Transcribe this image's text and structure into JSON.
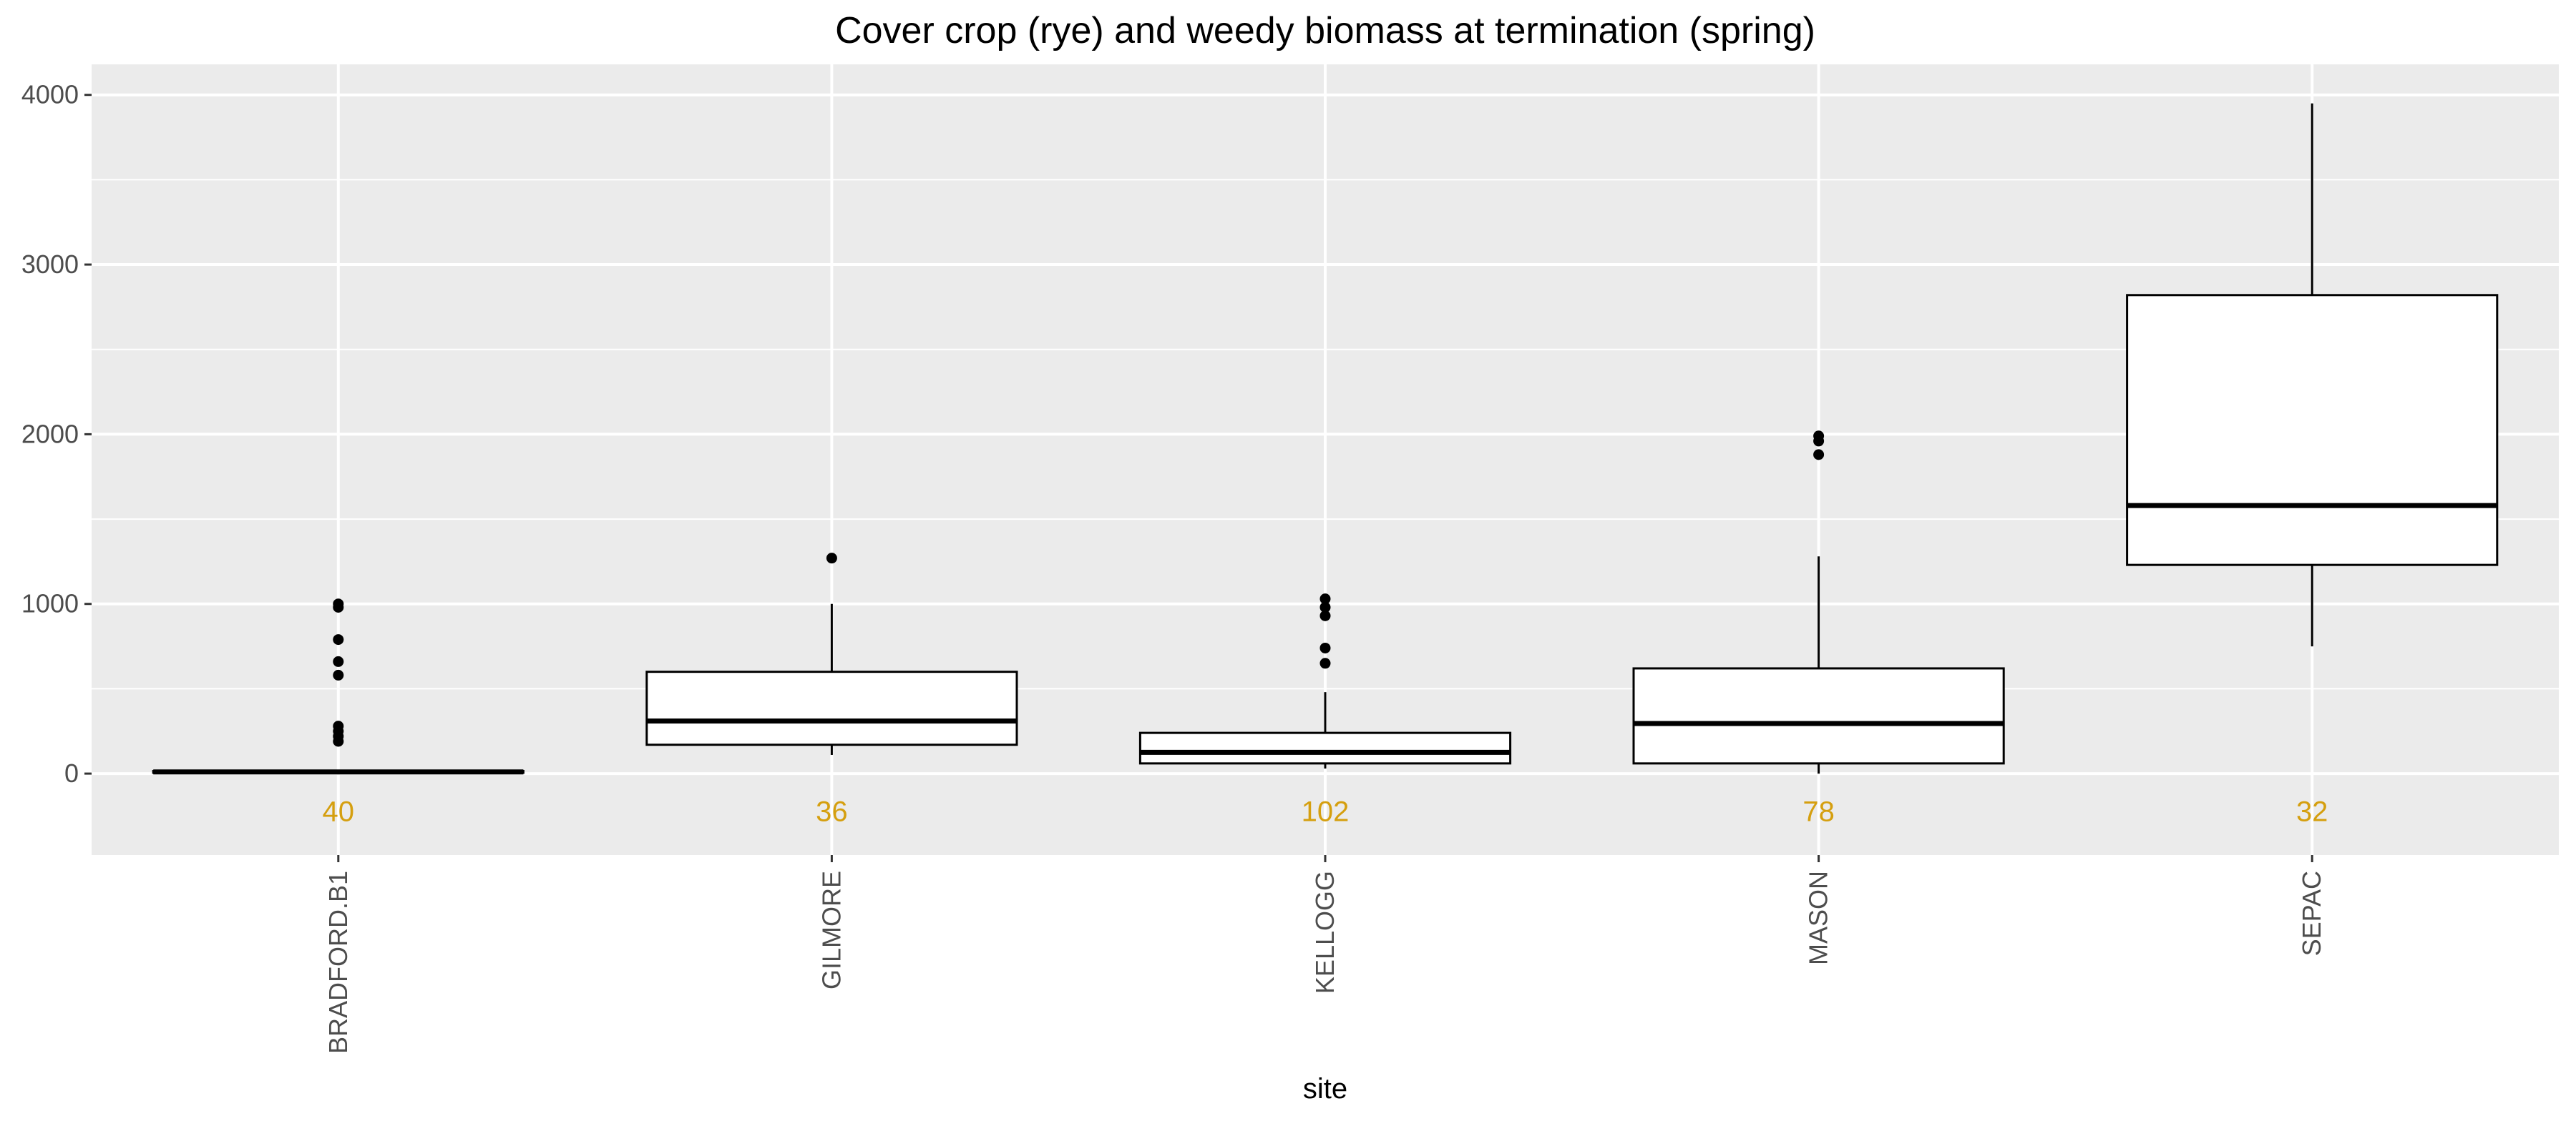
{
  "chart_data": {
    "type": "boxplot",
    "title": "Cover crop (rye) and weedy biomass at termination (spring)",
    "xlabel": "site",
    "ylabel": "",
    "ylim": [
      -480,
      4180
    ],
    "yticks": [
      0,
      1000,
      2000,
      3000,
      4000
    ],
    "ytick_labels": [
      "0",
      "1000",
      "2000",
      "3000",
      "4000"
    ],
    "grid": true,
    "background": "#ebebeb",
    "count_color": "#d59f0f",
    "categories": [
      "BRADFORD.B1",
      "GILMORE",
      "KELLOGG",
      "MASON",
      "SEPAC"
    ],
    "counts": [
      "40",
      "36",
      "102",
      "78",
      "32"
    ],
    "count_y": -220,
    "boxes": [
      {
        "min": 0,
        "q1": 5,
        "median": 10,
        "q3": 15,
        "max": 20,
        "outliers": [
          190,
          220,
          250,
          280,
          580,
          660,
          790,
          980,
          1000
        ]
      },
      {
        "min": 110,
        "q1": 170,
        "median": 310,
        "q3": 600,
        "max": 1000,
        "outliers": [
          1270
        ]
      },
      {
        "min": 30,
        "q1": 60,
        "median": 125,
        "q3": 240,
        "max": 480,
        "outliers": [
          650,
          740,
          930,
          980,
          1030
        ]
      },
      {
        "min": 0,
        "q1": 60,
        "median": 295,
        "q3": 620,
        "max": 1280,
        "outliers": [
          1880,
          1960,
          1990
        ]
      },
      {
        "min": 750,
        "q1": 1230,
        "median": 1580,
        "q3": 2820,
        "max": 3950,
        "outliers": []
      }
    ]
  }
}
